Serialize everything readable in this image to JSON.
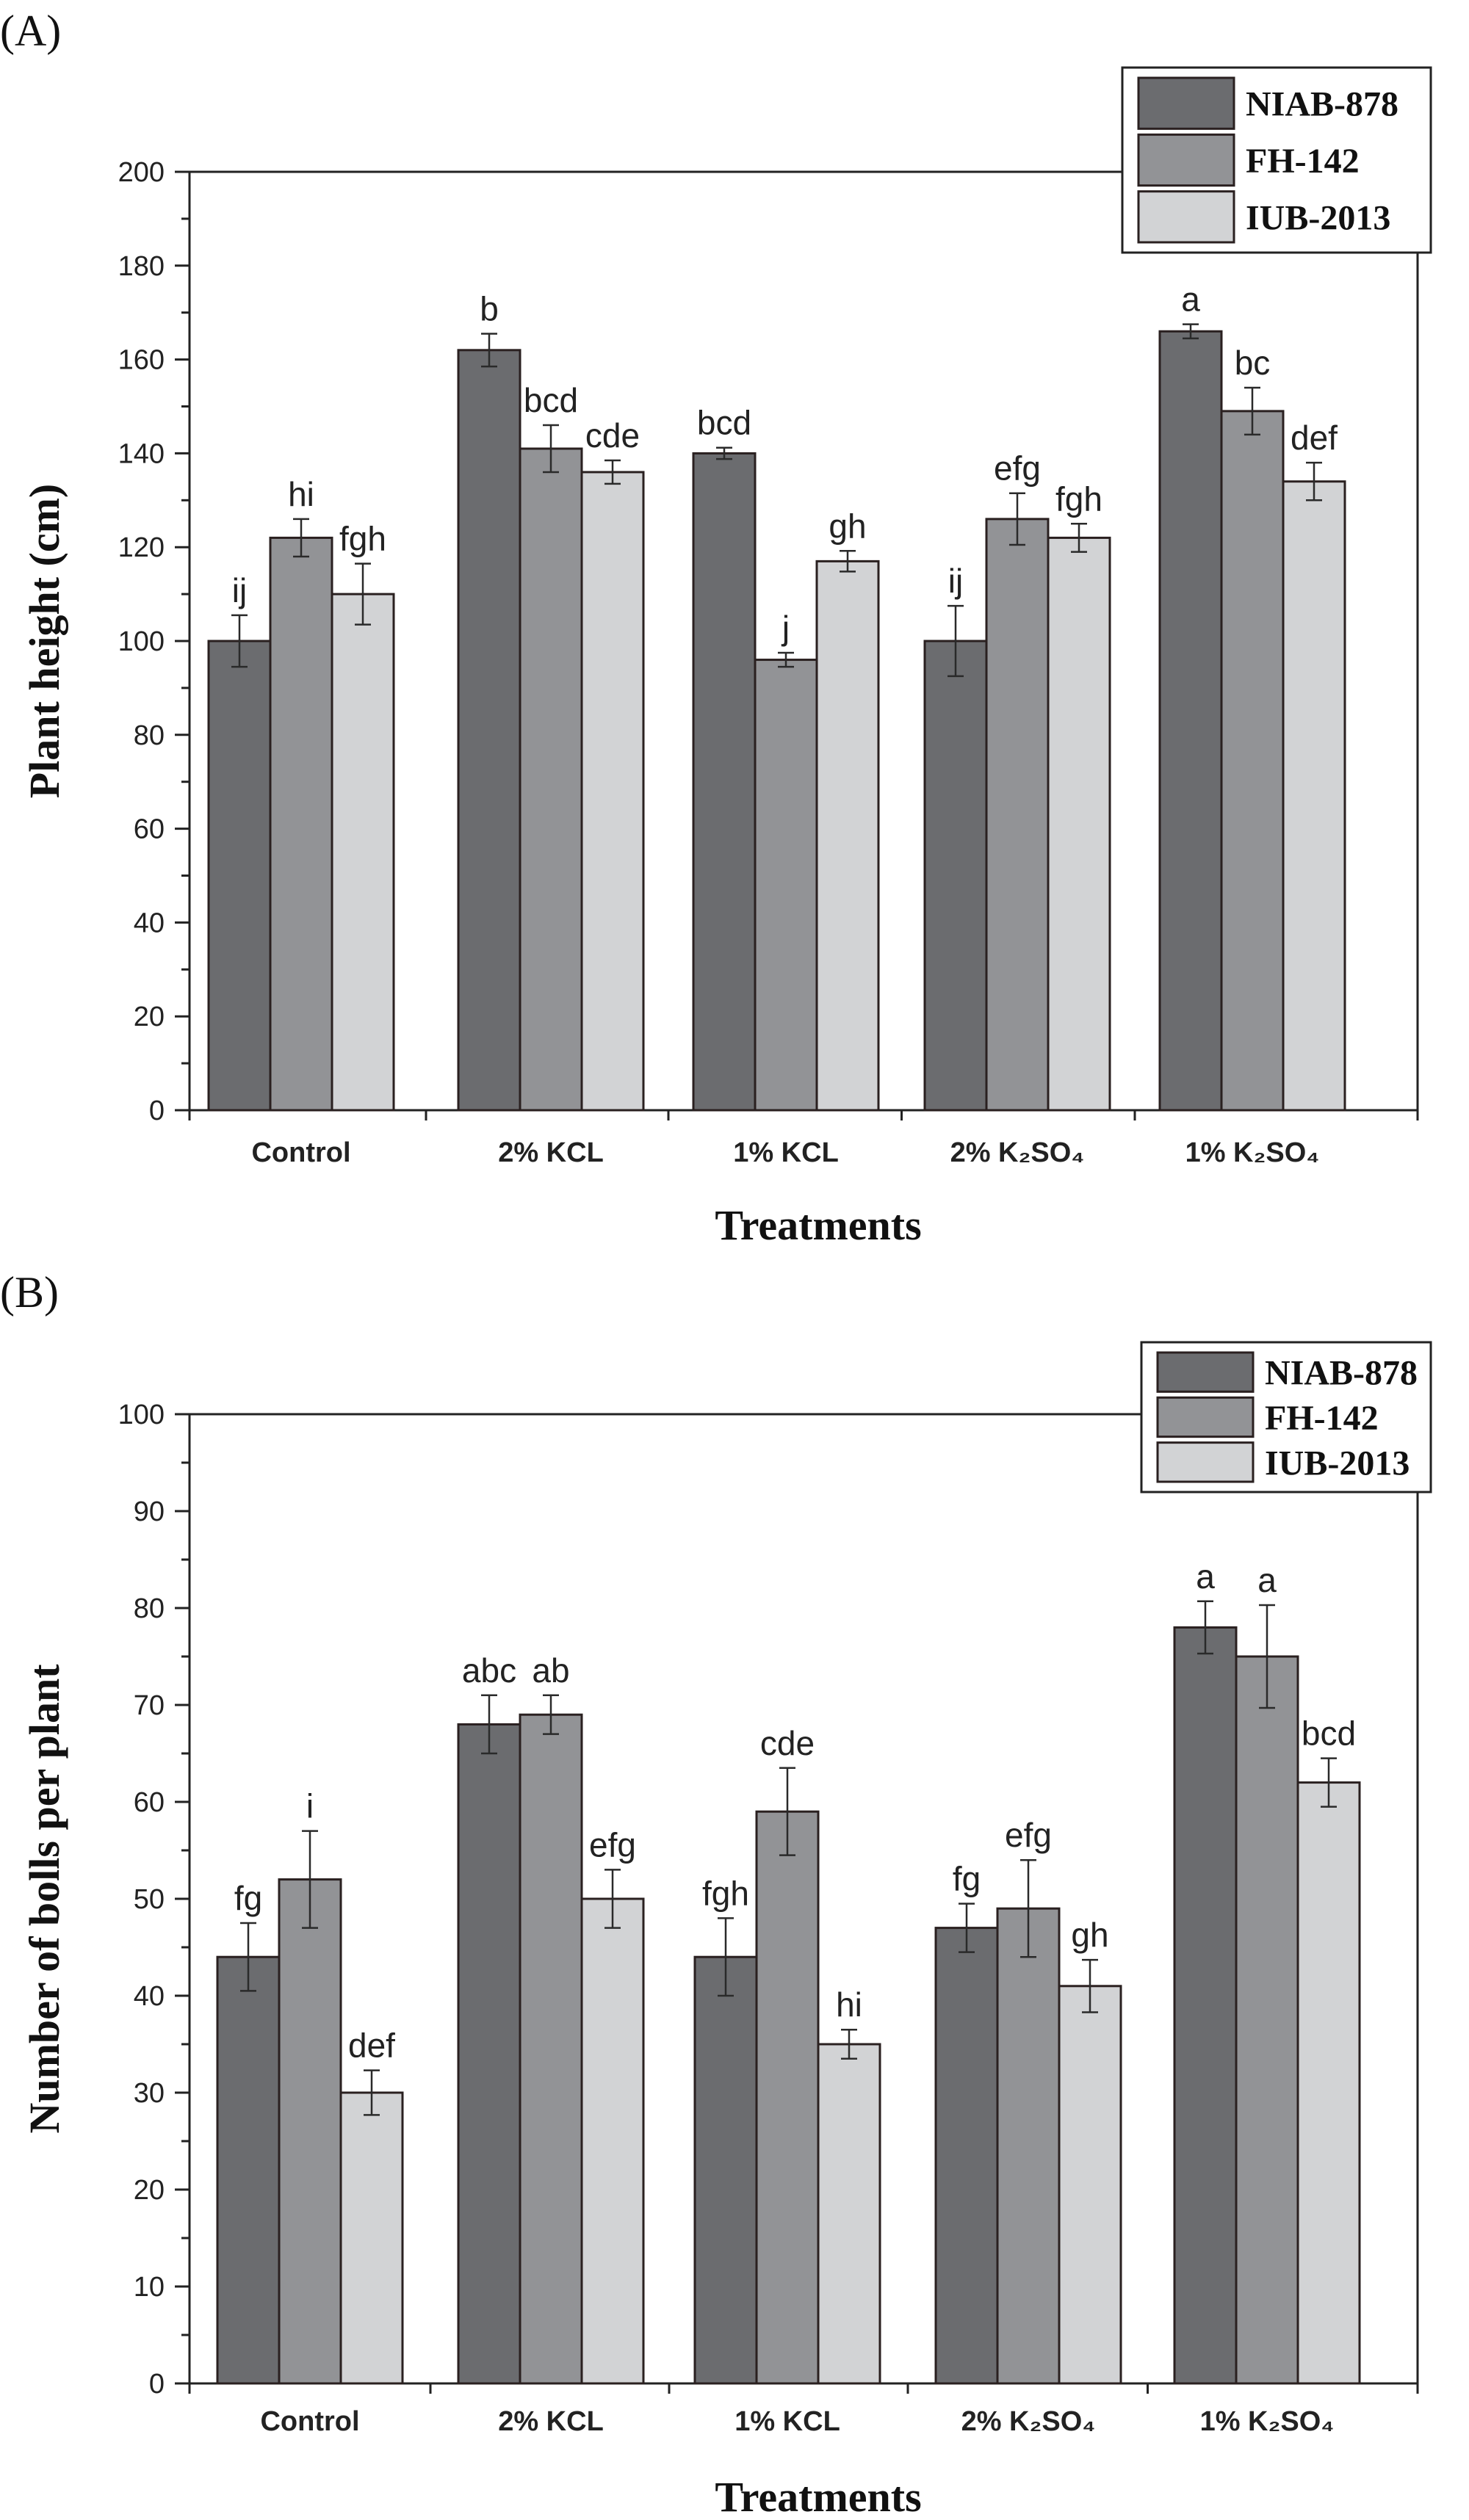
{
  "chart_data": [
    {
      "panel": "(A)",
      "type": "bar",
      "title": "",
      "xlabel": "Treatments",
      "ylabel": "Plant height (cm)",
      "ylim": [
        0,
        200
      ],
      "ytick_step": 20,
      "minor_ticks": true,
      "categories": [
        "Control",
        "2% KCL",
        "1% KCL",
        "2% K₂SO₄",
        "1% K₂SO₄"
      ],
      "series": [
        {
          "name": "NIAB-878",
          "color": "#6b6c6f",
          "values": [
            100,
            162,
            140,
            100,
            166
          ],
          "errors": [
            5.5,
            3.5,
            1.2,
            7.5,
            1.5
          ],
          "labels": [
            "ij",
            "b",
            "bcd",
            "ij",
            "a"
          ]
        },
        {
          "name": "FH-142",
          "color": "#929396",
          "values": [
            122,
            141,
            96,
            126,
            149
          ],
          "errors": [
            4,
            5,
            1.5,
            5.5,
            5
          ],
          "labels": [
            "hi",
            "bcd",
            "j",
            "efg",
            "bc"
          ]
        },
        {
          "name": "IUB-2013",
          "color": "#d2d3d5",
          "values": [
            110,
            136,
            117,
            122,
            134
          ],
          "errors": [
            6.5,
            2.5,
            2.2,
            3,
            4
          ],
          "labels": [
            "fgh",
            "cde",
            "gh",
            "fgh",
            "def"
          ]
        }
      ],
      "legend": "top-right"
    },
    {
      "panel": "(B)",
      "type": "bar",
      "title": "",
      "xlabel": "Treatments",
      "ylabel": "Number of bolls per plant",
      "ylim": [
        0,
        100
      ],
      "ytick_step": 10,
      "minor_ticks": true,
      "categories": [
        "Control",
        "2% KCL",
        "1% KCL",
        "2% K₂SO₄",
        "1% K₂SO₄"
      ],
      "series": [
        {
          "name": "NIAB-878",
          "color": "#6b6c6f",
          "values": [
            44,
            68,
            44,
            47,
            78
          ],
          "errors": [
            3.5,
            3,
            4,
            2.5,
            2.7
          ],
          "labels": [
            "fg",
            "abc",
            "fgh",
            "fg",
            "a"
          ]
        },
        {
          "name": "FH-142",
          "color": "#929396",
          "values": [
            52,
            69,
            59,
            49,
            75
          ],
          "errors": [
            5,
            2,
            4.5,
            5,
            5.3
          ],
          "labels": [
            "i",
            "ab",
            "cde",
            "efg",
            "a"
          ]
        },
        {
          "name": "IUB-2013",
          "color": "#d2d3d5",
          "values": [
            30,
            50,
            35,
            41,
            62
          ],
          "errors": [
            2.3,
            3,
            1.5,
            2.7,
            2.5
          ],
          "labels": [
            "def",
            "efg",
            "hi",
            "gh",
            "bcd"
          ]
        }
      ],
      "legend": "top-right"
    }
  ]
}
